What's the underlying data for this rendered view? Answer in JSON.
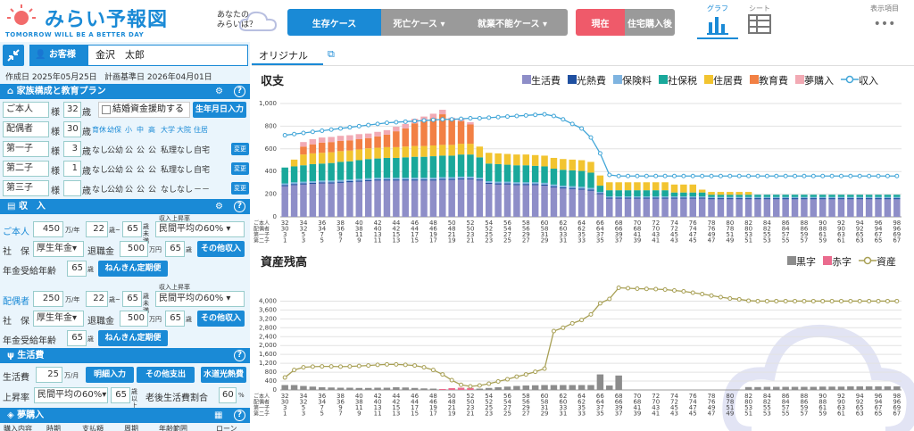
{
  "header": {
    "logo_main": "みらい予報図",
    "logo_sub": "TOMORROW WILL BE A BETTER DAY",
    "tagline_1": "あなたの",
    "tagline_2": "みらいは？",
    "case_tabs": [
      "生存ケース",
      "死亡ケース ▾",
      "就業不能ケース ▾"
    ],
    "time_tabs": [
      "現在",
      "住宅購入後"
    ],
    "view_graph": "グラフ",
    "view_sheet": "シート",
    "display_items": "表示項目",
    "more": "•••"
  },
  "customer": {
    "label": "お客様",
    "name": "金沢　太郎",
    "created": "作成日 2025年05月25日",
    "base": "計画基準日 2026年04月01日"
  },
  "family": {
    "title": "家族構成と教育プラン",
    "self_label": "ご本人",
    "self_age": "32",
    "sama": "様",
    "sai": "歳",
    "marriage": "結婚資金援助する",
    "birthday_btn": "生年月日入力",
    "spouse_label": "配偶者",
    "spouse_age": "30",
    "edu_headers": [
      "育休",
      "幼保",
      "小",
      "中",
      "高",
      "大学",
      "大院",
      "住居"
    ],
    "children": [
      {
        "label": "第一子",
        "age": "3",
        "plan": [
          "なし",
          "公幼",
          "公",
          "公",
          "公",
          "私理",
          "なし",
          "自宅"
        ]
      },
      {
        "label": "第二子",
        "age": "1",
        "plan": [
          "なし",
          "公幼",
          "公",
          "公",
          "公",
          "私理",
          "なし",
          "自宅"
        ]
      },
      {
        "label": "第三子",
        "age": "",
        "plan": [
          "なし",
          "公幼",
          "公",
          "公",
          "公",
          "なし",
          "なし",
          "－－"
        ]
      }
    ],
    "change": "変更"
  },
  "income": {
    "title": "収　入",
    "self_label": "ご本人",
    "self_income": "450",
    "man_nen": "万/年",
    "from_age": "22",
    "to_age": "65",
    "sai_miman": "歳未満",
    "raise_label": "収入上昇率",
    "raise": "民間平均の60%",
    "shaho": "社　保",
    "pension_type": "厚生年金",
    "retire_label": "退職金",
    "retire": "500",
    "man_en": "万円",
    "retire_age": "65",
    "sai": "歳",
    "other_btn": "その他収入",
    "pension_age_label": "年金受給年齢",
    "pension_age": "65",
    "nenkin_btn": "ねんきん定期便",
    "spouse_label": "配偶者",
    "spouse_income": "250",
    "sp_from": "22",
    "sp_to": "65",
    "sp_raise": "民間平均の60%",
    "sp_pension_type": "厚生年金",
    "sp_retire": "500",
    "sp_retire_age": "65",
    "sp_pension_age": "65"
  },
  "living": {
    "title": "生活費",
    "cost_label": "生活費",
    "cost": "25",
    "unit": "万/月",
    "detail_btn": "明細入力",
    "other_btn": "その他支出",
    "utility_btn": "水道光熱費",
    "raise_label": "上昇率",
    "raise": "民間平均の60%",
    "age": "65",
    "sai_ijo": "歳以上",
    "retire_ratio_label": "老後生活費割合",
    "ratio": "60",
    "pct": "%"
  },
  "dream": {
    "title": "夢購入",
    "cols": [
      "購入内容",
      "時期",
      "支払額",
      "周期",
      "年齢範囲",
      "ローン"
    ]
  },
  "chart_tab": "オリジナル",
  "colors": {
    "primary": "#1a8ad6",
    "living": "#8e8ec8",
    "utility": "#1f4fa0",
    "insurance": "#7fb4e0",
    "social": "#19a89b",
    "housing": "#f2c430",
    "education": "#f28044",
    "dream": "#f2aab4",
    "income_line": "#42a6d8",
    "black": "#8c8c8c",
    "red": "#ea6b8e",
    "asset_line": "#a8a055"
  },
  "chart_data": [
    {
      "type": "bar",
      "title": "収支",
      "stacked": true,
      "ylim": [
        0,
        1000
      ],
      "yticks": [
        "0",
        "200",
        "400",
        "600",
        "800",
        "1,000"
      ],
      "age_rows": [
        "ご本人",
        "配偶者",
        "第一子",
        "第二子"
      ],
      "series": [
        {
          "name": "生活費",
          "values": [
            270,
            280,
            285,
            290,
            295,
            295,
            300,
            305,
            310,
            315,
            320,
            320,
            320,
            320,
            320,
            320,
            320,
            325,
            325,
            330,
            330,
            320,
            290,
            285,
            285,
            280,
            280,
            280,
            275,
            260,
            250,
            245,
            240,
            230,
            200,
            160,
            160,
            160,
            160,
            160,
            160,
            160,
            160,
            160,
            160,
            160,
            155,
            155,
            155,
            155,
            155,
            155,
            155,
            155,
            155,
            155,
            155,
            155,
            155,
            155,
            155,
            155,
            155,
            155,
            155,
            155,
            155
          ]
        },
        {
          "name": "光熱費",
          "values": [
            10,
            10,
            10,
            10,
            10,
            10,
            10,
            10,
            10,
            10,
            10,
            10,
            10,
            10,
            10,
            10,
            10,
            10,
            10,
            10,
            10,
            10,
            10,
            10,
            10,
            10,
            10,
            10,
            10,
            10,
            10,
            10,
            10,
            10,
            10,
            10,
            10,
            10,
            10,
            10,
            10,
            10,
            10,
            10,
            10,
            10,
            10,
            10,
            10,
            10,
            10,
            10,
            10,
            10,
            10,
            10,
            10,
            10,
            10,
            10,
            10,
            10,
            10,
            10,
            10,
            10,
            10
          ]
        },
        {
          "name": "保険料",
          "values": [
            15,
            15,
            15,
            15,
            15,
            15,
            15,
            15,
            15,
            15,
            15,
            15,
            15,
            15,
            15,
            15,
            15,
            15,
            15,
            15,
            15,
            15,
            15,
            15,
            15,
            15,
            15,
            15,
            15,
            15,
            15,
            15,
            15,
            15,
            10,
            10,
            10,
            10,
            10,
            10,
            10,
            10,
            10,
            10,
            10,
            10,
            10,
            10,
            10,
            10,
            10,
            10,
            10,
            10,
            10,
            10,
            10,
            10,
            10,
            10,
            10,
            10,
            10,
            10,
            10,
            10,
            10
          ]
        },
        {
          "name": "社保税",
          "values": [
            140,
            140,
            145,
            150,
            150,
            155,
            160,
            160,
            165,
            170,
            170,
            175,
            175,
            180,
            185,
            185,
            190,
            190,
            190,
            195,
            195,
            180,
            155,
            155,
            150,
            150,
            150,
            145,
            145,
            140,
            140,
            140,
            140,
            135,
            55,
            55,
            55,
            55,
            55,
            55,
            55,
            55,
            35,
            35,
            35,
            35,
            20,
            20,
            20,
            20,
            20,
            20,
            20,
            20,
            20,
            20,
            20,
            20,
            20,
            20,
            20,
            20,
            20,
            20,
            20,
            20,
            20
          ]
        },
        {
          "name": "住居費",
          "values": [
            0,
            60,
            95,
            95,
            95,
            95,
            95,
            95,
            95,
            95,
            95,
            95,
            95,
            95,
            95,
            95,
            95,
            95,
            95,
            95,
            95,
            95,
            95,
            95,
            95,
            95,
            95,
            95,
            95,
            95,
            95,
            95,
            95,
            95,
            90,
            70,
            70,
            70,
            70,
            70,
            70,
            70,
            70,
            70,
            70,
            25,
            25,
            25,
            25,
            25,
            25,
            0,
            0,
            0,
            0,
            0,
            0,
            0,
            0,
            0,
            0,
            0,
            0,
            0,
            0,
            0,
            0
          ]
        },
        {
          "name": "教育費",
          "values": [
            0,
            0,
            70,
            80,
            90,
            90,
            90,
            90,
            90,
            90,
            100,
            110,
            140,
            160,
            200,
            220,
            240,
            270,
            220,
            200,
            170,
            0,
            0,
            0,
            0,
            0,
            0,
            0,
            0,
            0,
            0,
            0,
            0,
            0,
            0,
            0,
            0,
            0,
            0,
            0,
            0,
            0,
            0,
            0,
            0,
            0,
            0,
            0,
            0,
            0,
            0,
            0,
            0,
            0,
            0,
            0,
            0,
            0,
            0,
            0,
            0,
            0,
            0,
            0,
            0,
            0,
            0
          ]
        },
        {
          "name": "夢購入",
          "values": [
            0,
            0,
            40,
            45,
            45,
            45,
            45,
            45,
            45,
            40,
            40,
            40,
            40,
            40,
            40,
            40,
            40,
            40,
            20,
            20,
            20,
            0,
            0,
            0,
            0,
            0,
            0,
            0,
            0,
            0,
            0,
            0,
            0,
            0,
            0,
            0,
            0,
            0,
            0,
            0,
            0,
            0,
            0,
            0,
            0,
            0,
            0,
            0,
            0,
            0,
            0,
            0,
            0,
            0,
            0,
            0,
            0,
            0,
            0,
            0,
            0,
            0,
            0,
            0,
            0,
            0,
            0
          ]
        },
        {
          "name": "収入",
          "type": "line",
          "values": [
            720,
            730,
            740,
            750,
            760,
            770,
            780,
            790,
            800,
            810,
            820,
            830,
            835,
            840,
            845,
            850,
            855,
            860,
            860,
            865,
            870,
            870,
            875,
            880,
            885,
            890,
            895,
            900,
            905,
            890,
            860,
            820,
            780,
            700,
            560,
            370,
            360,
            360,
            360,
            360,
            360,
            360,
            360,
            360,
            360,
            360,
            360,
            360,
            360,
            360,
            360,
            360,
            360,
            360,
            360,
            360,
            360,
            360,
            360,
            360,
            360,
            360,
            360,
            360,
            360,
            360,
            360
          ]
        }
      ]
    },
    {
      "type": "bar",
      "title": "資産残高",
      "ylim": [
        0,
        4500
      ],
      "yticks": [
        "0",
        "400",
        "800",
        "1,200",
        "1,600",
        "2,000",
        "2,400",
        "2,800",
        "3,200",
        "3,600",
        "4,000"
      ],
      "age_rows": [
        "ご本人",
        "配偶者",
        "第一子",
        "第二子"
      ],
      "series": [
        {
          "name": "黒字",
          "values": [
            220,
            220,
            180,
            150,
            120,
            110,
            100,
            100,
            90,
            90,
            100,
            100,
            120,
            110,
            90,
            70,
            60,
            0,
            0,
            0,
            0,
            60,
            90,
            120,
            150,
            180,
            200,
            210,
            220,
            220,
            220,
            220,
            220,
            220,
            700,
            200,
            650,
            0,
            0,
            0,
            0,
            0,
            0,
            0,
            0,
            0,
            0,
            0,
            0,
            0,
            130,
            130,
            140,
            140,
            140,
            140,
            140,
            140,
            150,
            150,
            150,
            160,
            160,
            160,
            160,
            160,
            160
          ]
        },
        {
          "name": "赤字",
          "values": [
            0,
            0,
            0,
            0,
            0,
            0,
            0,
            0,
            0,
            0,
            0,
            0,
            0,
            0,
            0,
            0,
            0,
            40,
            80,
            100,
            90,
            0,
            0,
            0,
            0,
            0,
            0,
            0,
            0,
            0,
            0,
            0,
            0,
            0,
            0,
            0,
            0,
            0,
            0,
            0,
            0,
            0,
            0,
            0,
            0,
            0,
            0,
            0,
            0,
            0,
            0,
            0,
            0,
            0,
            0,
            0,
            0,
            0,
            0,
            0,
            0,
            0,
            0,
            0,
            0,
            0,
            0
          ]
        },
        {
          "name": "資産",
          "type": "line",
          "values": [
            560,
            900,
            1020,
            1050,
            1060,
            1060,
            1050,
            1060,
            1080,
            1100,
            1130,
            1150,
            1150,
            1130,
            1100,
            1020,
            900,
            700,
            440,
            230,
            160,
            200,
            280,
            380,
            480,
            600,
            700,
            820,
            960,
            2650,
            2800,
            3000,
            3150,
            3400,
            3900,
            4100,
            4600,
            4580,
            4560,
            4550,
            4540,
            4520,
            4480,
            4440,
            4380,
            4320,
            4250,
            4180,
            4120,
            4080,
            4020,
            4000,
            4000,
            4000,
            4000,
            4000,
            4000,
            4000,
            4000,
            4000,
            4000,
            4000,
            4000,
            4000,
            4000,
            4000,
            4000
          ]
        }
      ]
    }
  ],
  "ages": {
    "self": [
      "32",
      "34",
      "36",
      "38",
      "40",
      "42",
      "44",
      "46",
      "48",
      "50",
      "52",
      "54",
      "56",
      "58",
      "60",
      "62",
      "64",
      "66",
      "68",
      "70",
      "72",
      "74",
      "76",
      "78",
      "80",
      "82",
      "84",
      "86",
      "88",
      "90",
      "92",
      "94",
      "96",
      "98"
    ],
    "spouse": [
      "30",
      "32",
      "34",
      "36",
      "38",
      "40",
      "42",
      "44",
      "46",
      "48",
      "50",
      "52",
      "54",
      "56",
      "58",
      "60",
      "62",
      "64",
      "66",
      "68",
      "70",
      "72",
      "74",
      "76",
      "78",
      "80",
      "82",
      "84",
      "86",
      "88",
      "90",
      "92",
      "94",
      "96"
    ],
    "child1": [
      "3",
      "5",
      "7",
      "9",
      "11",
      "13",
      "15",
      "17",
      "19",
      "21",
      "23",
      "25",
      "27",
      "29",
      "31",
      "33",
      "35",
      "37",
      "39",
      "41",
      "43",
      "45",
      "47",
      "49",
      "51",
      "53",
      "55",
      "57",
      "59",
      "61",
      "63",
      "65",
      "67",
      "69"
    ],
    "child2": [
      "1",
      "3",
      "5",
      "7",
      "9",
      "11",
      "13",
      "15",
      "17",
      "19",
      "21",
      "23",
      "25",
      "27",
      "29",
      "31",
      "33",
      "35",
      "37",
      "39",
      "41",
      "43",
      "45",
      "47",
      "49",
      "51",
      "53",
      "55",
      "57",
      "59",
      "61",
      "63",
      "65",
      "67"
    ]
  }
}
